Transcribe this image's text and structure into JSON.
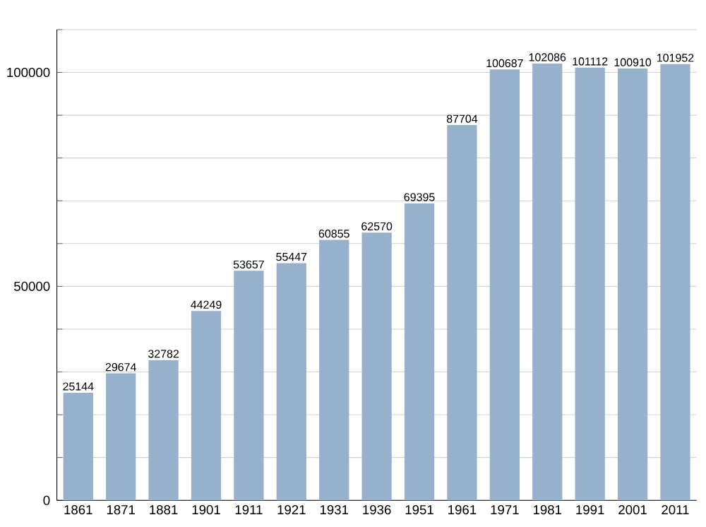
{
  "chart_data": {
    "type": "bar",
    "categories": [
      "1861",
      "1871",
      "1881",
      "1901",
      "1911",
      "1921",
      "1931",
      "1936",
      "1951",
      "1961",
      "1971",
      "1981",
      "1991",
      "2001",
      "2011"
    ],
    "values": [
      25144,
      29674,
      32782,
      44249,
      53657,
      55447,
      60855,
      62570,
      69395,
      87704,
      100687,
      102086,
      101112,
      100910,
      101952
    ],
    "color": "#97b0cc",
    "ylim": [
      0,
      110000
    ],
    "yticks": [
      0,
      {
        "value": 10000,
        "label": null
      },
      {
        "value": 20000,
        "label": null
      },
      {
        "value": 30000,
        "label": null
      },
      {
        "value": 40000,
        "label": null
      },
      50000,
      {
        "value": 60000,
        "label": null
      },
      {
        "value": 70000,
        "label": null
      },
      {
        "value": 80000,
        "label": null
      },
      {
        "value": 90000,
        "label": null
      },
      100000,
      {
        "value": 110000,
        "label": null
      }
    ],
    "grid": "y",
    "data_labels": true
  }
}
